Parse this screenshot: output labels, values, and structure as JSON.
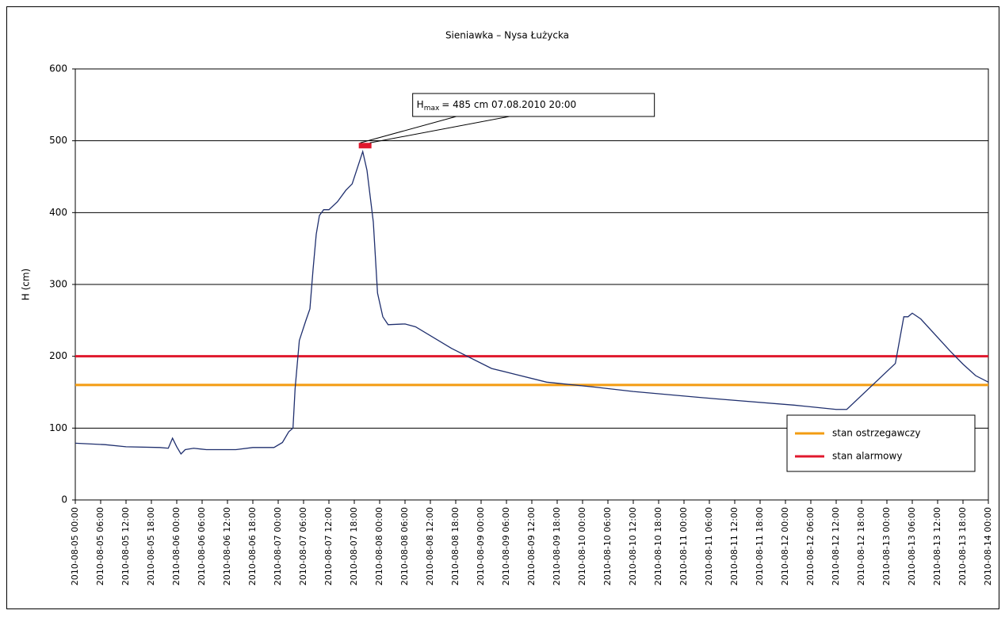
{
  "chart_data": {
    "type": "line",
    "title": "Sieniawka – Nysa Łużycka",
    "y_label": "H (cm)",
    "x": [
      "2010-08-05 00:00",
      "2010-08-05 07:00",
      "2010-08-05 12:00",
      "2010-08-05 20:00",
      "2010-08-05 22:00",
      "2010-08-05 23:00",
      "2010-08-06 00:00",
      "2010-08-06 01:00",
      "2010-08-06 02:00",
      "2010-08-06 04:00",
      "2010-08-06 07:00",
      "2010-08-06 14:00",
      "2010-08-06 18:00",
      "2010-08-06 23:00",
      "2010-08-07 01:00",
      "2010-08-07 02:30",
      "2010-08-07 03:30",
      "2010-08-07 04:00",
      "2010-08-07 05:00",
      "2010-08-07 06:30",
      "2010-08-07 07:30",
      "2010-08-07 08:15",
      "2010-08-07 09:00",
      "2010-08-07 09:45",
      "2010-08-07 10:45",
      "2010-08-07 12:00",
      "2010-08-07 14:00",
      "2010-08-07 16:00",
      "2010-08-07 17:30",
      "2010-08-07 20:00",
      "2010-08-07 21:00",
      "2010-08-07 22:30",
      "2010-08-07 23:30",
      "2010-08-08 00:45",
      "2010-08-08 02:00",
      "2010-08-08 06:00",
      "2010-08-08 08:30",
      "2010-08-08 17:00",
      "2010-08-09 02:30",
      "2010-08-09 08:00",
      "2010-08-09 15:30",
      "2010-08-10 03:00",
      "2010-08-10 12:00",
      "2010-08-11 07:00",
      "2010-08-12 02:00",
      "2010-08-12 12:00",
      "2010-08-12 14:30",
      "2010-08-13 02:00",
      "2010-08-13 04:00",
      "2010-08-13 05:00",
      "2010-08-13 06:00",
      "2010-08-13 08:00",
      "2010-08-13 15:00",
      "2010-08-13 18:00",
      "2010-08-13 21:00",
      "2010-08-14 00:00"
    ],
    "series": [
      {
        "color": "#1f2f6e",
        "values": [
          79,
          77,
          74,
          73,
          72,
          86,
          74,
          64,
          70,
          72,
          70,
          70,
          73,
          73,
          80,
          95,
          100,
          155,
          222,
          249,
          266,
          321,
          370,
          396,
          404,
          404,
          415,
          431,
          440,
          485,
          459,
          387,
          288,
          255,
          244,
          245,
          241,
          211,
          183,
          175,
          164,
          157,
          151,
          141,
          132,
          126,
          126,
          190,
          255,
          255,
          260,
          252,
          207,
          189,
          173,
          164
        ]
      }
    ],
    "reference_lines": [
      {
        "name": "stan ostrzegawczy",
        "color": "#f39c12",
        "value": 160
      },
      {
        "name": "stan alarmowy",
        "color": "#e0182d",
        "value": 200
      }
    ],
    "annotation": {
      "symbol": "H",
      "subscript": "max",
      "text": "= 485 cm 07.08.2010 20:00",
      "x": "2010-08-07 20:00",
      "value": 485,
      "color": "#e0182d"
    },
    "xlim": [
      "2010-08-05 00:00",
      "2010-08-14 00:00"
    ],
    "xticks": [
      "2010-08-05 00:00",
      "2010-08-05 06:00",
      "2010-08-05 12:00",
      "2010-08-05 18:00",
      "2010-08-06 00:00",
      "2010-08-06 06:00",
      "2010-08-06 12:00",
      "2010-08-06 18:00",
      "2010-08-07 00:00",
      "2010-08-07 06:00",
      "2010-08-07 12:00",
      "2010-08-07 18:00",
      "2010-08-08 00:00",
      "2010-08-08 06:00",
      "2010-08-08 12:00",
      "2010-08-08 18:00",
      "2010-08-09 00:00",
      "2010-08-09 06:00",
      "2010-08-09 12:00",
      "2010-08-09 18:00",
      "2010-08-10 00:00",
      "2010-08-10 06:00",
      "2010-08-10 12:00",
      "2010-08-10 18:00",
      "2010-08-11 00:00",
      "2010-08-11 06:00",
      "2010-08-11 12:00",
      "2010-08-11 18:00",
      "2010-08-12 00:00",
      "2010-08-12 06:00",
      "2010-08-12 12:00",
      "2010-08-12 18:00",
      "2010-08-13 00:00",
      "2010-08-13 06:00",
      "2010-08-13 12:00",
      "2010-08-13 18:00",
      "2010-08-14 00:00"
    ],
    "ylim": [
      0,
      600
    ],
    "yticks": [
      0,
      100,
      200,
      300,
      400,
      500,
      600
    ],
    "grid": true,
    "legend": "bottom-right"
  }
}
